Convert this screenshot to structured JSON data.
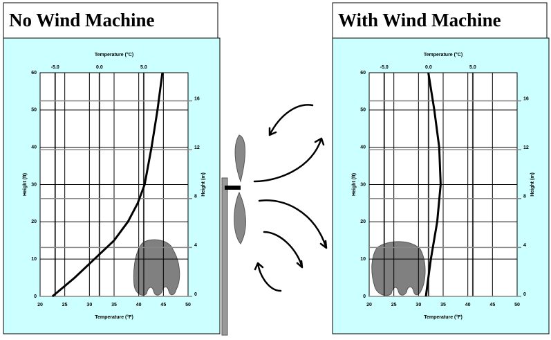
{
  "chart_data": [
    {
      "type": "line",
      "title": "No Wind Machine",
      "x_label": "Temperature (°F)",
      "x2_label": "Temperature (°C)",
      "y_label": "Height (ft)",
      "y2_label": "Height (m)",
      "xlim": [
        20,
        50
      ],
      "xticks": [
        20,
        25,
        30,
        35,
        40,
        45,
        50
      ],
      "x2lim": [
        -6.7,
        10
      ],
      "x2ticks": [
        {
          "value": -5,
          "label": "-5.0"
        },
        {
          "value": 0,
          "label": "0.0"
        },
        {
          "value": 5,
          "label": "5.0"
        }
      ],
      "ylim": [
        0,
        60
      ],
      "yticks": [
        0,
        10,
        20,
        30,
        40,
        50,
        60
      ],
      "y2lim": [
        0,
        18.3
      ],
      "y2ticks": [
        0,
        4,
        8,
        12,
        16
      ],
      "grid": true,
      "series": [
        {
          "color": "#000000",
          "x": [
            22.5,
            27,
            31,
            35,
            37.8,
            39.8,
            41.2,
            42.6,
            43.8,
            44.8
          ],
          "values": [
            0,
            5,
            10,
            15,
            20,
            25,
            30,
            40,
            50,
            60
          ]
        }
      ]
    },
    {
      "type": "line",
      "title": "With Wind Machine",
      "x_label": "Temperature (°F)",
      "x2_label": "Temperature (°C)",
      "y_label": "Height (ft)",
      "y2_label": "Height (m)",
      "xlim": [
        20,
        50
      ],
      "xticks": [
        20,
        25,
        30,
        35,
        40,
        45,
        50
      ],
      "x2lim": [
        -6.7,
        10
      ],
      "x2ticks": [
        {
          "value": -5,
          "label": "-5.0"
        },
        {
          "value": 0,
          "label": "0.0"
        },
        {
          "value": 5,
          "label": "5.0"
        }
      ],
      "ylim": [
        0,
        60
      ],
      "yticks": [
        0,
        10,
        20,
        30,
        40,
        50,
        60
      ],
      "y2lim": [
        0,
        18.3
      ],
      "y2ticks": [
        0,
        4,
        8,
        12,
        16
      ],
      "grid": true,
      "series": [
        {
          "color": "#000000",
          "x": [
            31.5,
            32.5,
            33.8,
            34.5,
            34.2,
            33.2,
            32
          ],
          "values": [
            0,
            10,
            20,
            30,
            40,
            50,
            60
          ]
        }
      ]
    }
  ]
}
